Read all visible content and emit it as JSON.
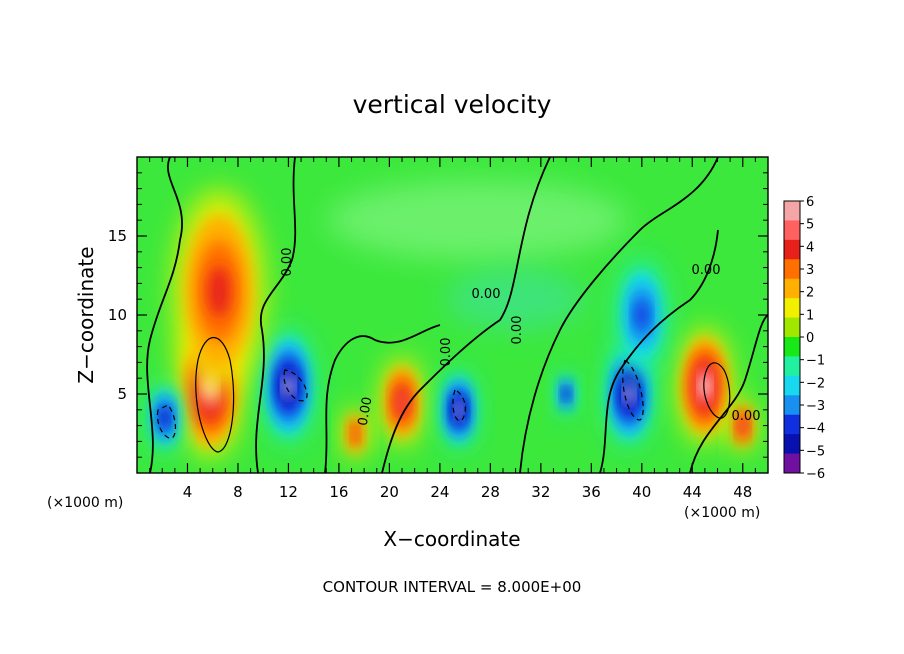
{
  "chart_data": {
    "type": "heatmap",
    "title": "vertical velocity",
    "xlabel": "X−coordinate",
    "ylabel": "Z−coordinate",
    "x_unit": "(×1000 m)",
    "x_unit_right": "(×1000 m)",
    "xlim": [
      0,
      50
    ],
    "ylim": [
      0,
      20
    ],
    "x_ticks": [
      4,
      8,
      12,
      16,
      20,
      24,
      28,
      32,
      36,
      40,
      44,
      48
    ],
    "y_ticks": [
      5,
      10,
      15
    ],
    "colorbar": {
      "ticks": [
        "6",
        "5",
        "4",
        "3",
        "2",
        "1",
        "0",
        "−1",
        "−2",
        "−3",
        "−4",
        "−5",
        "−6"
      ],
      "values": [
        6,
        5,
        4,
        3,
        2,
        1,
        0,
        -1,
        -2,
        -3,
        -4,
        -5,
        -6
      ],
      "colors": [
        "#f4a6a6",
        "#ff6060",
        "#e8201a",
        "#ff7000",
        "#ffb000",
        "#f0f000",
        "#a0e800",
        "#18e818",
        "#20f0a0",
        "#18d8f0",
        "#1890f0",
        "#1030e0",
        "#0810b0",
        "#7010a0"
      ]
    },
    "contour_labels": [
      "0.00",
      "0.00",
      "0.00",
      "0.00",
      "0.00",
      "0.00",
      "0.00"
    ],
    "features": [
      {
        "x": 5.8,
        "z": 5.5,
        "w": 3.2,
        "h": 0.95,
        "sign": "up"
      },
      {
        "x": 2.2,
        "z": 3.5,
        "w": 1.6,
        "h": -0.9,
        "sign": "down"
      },
      {
        "x": 12.0,
        "z": 5.5,
        "w": 2.6,
        "h": -0.95,
        "sign": "down"
      },
      {
        "x": 17.3,
        "z": 2.5,
        "w": 1.2,
        "h": 0.7,
        "sign": "up"
      },
      {
        "x": 21.0,
        "z": 4.5,
        "w": 2.0,
        "h": 0.85,
        "sign": "up"
      },
      {
        "x": 25.5,
        "z": 4.0,
        "w": 1.8,
        "h": -0.95,
        "sign": "down"
      },
      {
        "x": 34.0,
        "z": 5.0,
        "w": 1.0,
        "h": -0.8,
        "sign": "down"
      },
      {
        "x": 39.0,
        "z": 5.0,
        "w": 2.4,
        "h": -0.98,
        "sign": "down"
      },
      {
        "x": 45.0,
        "z": 5.5,
        "w": 2.6,
        "h": 0.97,
        "sign": "up"
      },
      {
        "x": 48.0,
        "z": 3.0,
        "w": 1.2,
        "h": 0.8,
        "sign": "up"
      },
      {
        "x": 40.0,
        "z": 10.0,
        "w": 2.6,
        "h": -0.7,
        "sign": "down"
      },
      {
        "x": 6.5,
        "z": 11.5,
        "w": 4.5,
        "h": 0.6,
        "sign": "up"
      }
    ]
  },
  "footer": {
    "contour_interval": "CONTOUR INTERVAL = 8.000E+00"
  }
}
